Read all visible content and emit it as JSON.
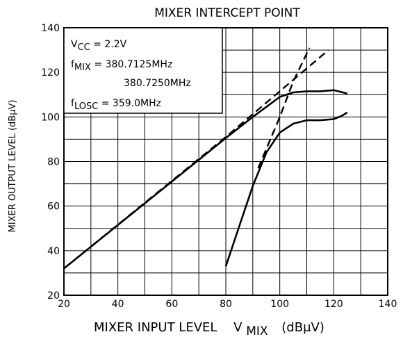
{
  "chart_data": {
    "type": "line",
    "title": "MIXER INTERCEPT POINT",
    "xlabel": {
      "text": "MIXER INPUT LEVEL",
      "symbol": "V",
      "symbol_sub": "MIX",
      "unit": "(dBμV)"
    },
    "ylabel": "MIXER OUTPUT LEVEL   (dBμV)",
    "xlim": [
      20,
      140
    ],
    "ylim": [
      20,
      140
    ],
    "x_ticks": [
      20,
      40,
      60,
      80,
      100,
      120,
      140
    ],
    "y_ticks": [
      20,
      40,
      60,
      80,
      100,
      120,
      140
    ],
    "grid": true,
    "conditions": [
      {
        "base": "V",
        "sub": "CC",
        "text": " = 2.2V"
      },
      {
        "base": "f",
        "sub": "MIX",
        "text": " = 380.7125MHz"
      },
      {
        "base": "",
        "sub": "",
        "text": "380.7250MHz"
      },
      {
        "base": "f",
        "sub": "LOSC",
        "text": " = 359.0MHz"
      }
    ],
    "series": [
      {
        "style": "solid",
        "x": [
          20,
          40,
          60,
          80,
          90,
          95,
          100,
          105,
          110,
          115,
          120,
          125
        ],
        "y": [
          32,
          51.5,
          71,
          90.5,
          100,
          104.5,
          109,
          111,
          111.5,
          111.5,
          112,
          110.5
        ]
      },
      {
        "style": "solid",
        "x": [
          80,
          85,
          90,
          95,
          100,
          105,
          110,
          115,
          120,
          123,
          125
        ],
        "y": [
          33,
          51,
          69,
          84,
          93,
          97,
          98.5,
          98.5,
          99,
          100.5,
          102
        ]
      },
      {
        "style": "dashed",
        "x": [
          20,
          80,
          118
        ],
        "y": [
          32,
          91,
          130
        ]
      },
      {
        "style": "dashed",
        "x": [
          92,
          100,
          105,
          111
        ],
        "y": [
          77,
          100,
          116,
          131
        ]
      }
    ]
  }
}
